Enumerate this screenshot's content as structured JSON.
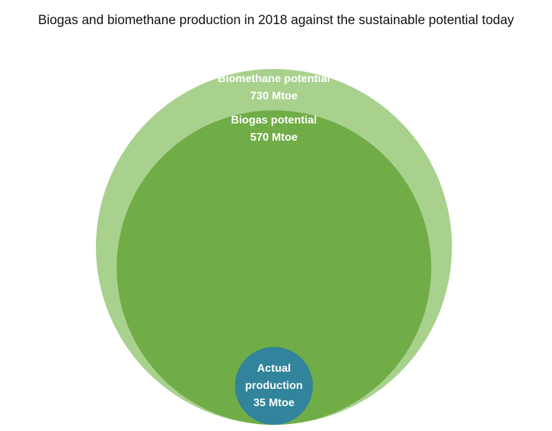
{
  "chart_data": {
    "type": "nested_bubble",
    "title": "Biogas and biomethane production in 2018 against the sustainable potential today",
    "categories": [
      "Biomethane potential",
      "Biogas potential",
      "Actual production"
    ],
    "values": [
      730,
      570,
      35
    ],
    "value_labels": [
      "730 Mtoe",
      "570 Mtoe",
      "35 Mtoe"
    ],
    "colors": [
      "#a9d18e",
      "#70ad47",
      "#31849b"
    ]
  }
}
